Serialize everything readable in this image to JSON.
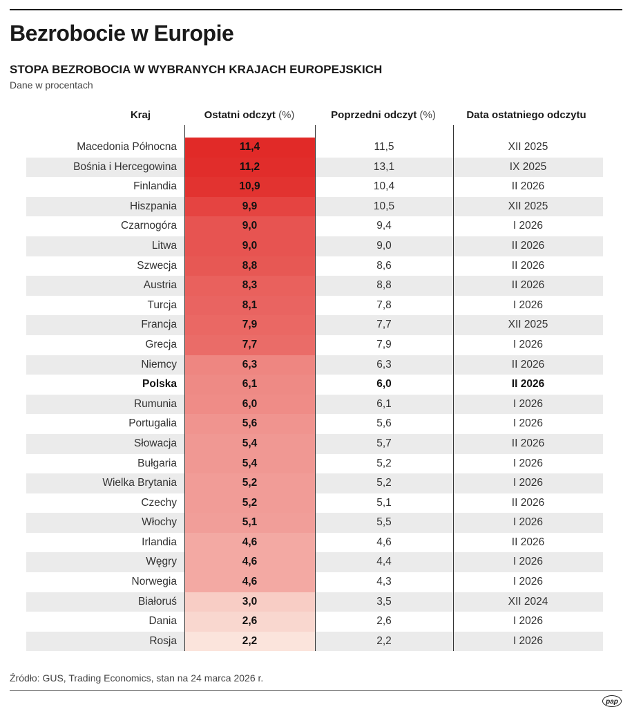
{
  "header": {
    "title": "Bezrobocie w Europie",
    "subtitle": "STOPA BEZROBOCIA W WYBRANYCH KRAJACH EUROPEJSKICH",
    "unit": "Dane w procentach"
  },
  "columns": {
    "country": "Kraj",
    "latest": "Ostatni odczyt",
    "latest_unit": "(%)",
    "previous": "Poprzedni odczyt",
    "previous_unit": "(%)",
    "date": "Data ostatniego odczytu"
  },
  "footer": {
    "source": "Źródło: GUS, Trading Economics, stan na 24 marca 2026 r.",
    "logo": "pap"
  },
  "colors": {
    "bar_max": "#e12a28",
    "bar_min": "#fbe4dc",
    "row_shade": "#ebebeb"
  },
  "chart_data": {
    "type": "table",
    "highlight": "Polska",
    "rows": [
      {
        "country": "Macedonia Północna",
        "latest": "11,4",
        "latest_value": 11.4,
        "previous": "11,5",
        "date": "XII 2025"
      },
      {
        "country": "Bośnia i Hercegowina",
        "latest": "11,2",
        "latest_value": 11.2,
        "previous": "13,1",
        "date": "IX 2025"
      },
      {
        "country": "Finlandia",
        "latest": "10,9",
        "latest_value": 10.9,
        "previous": "10,4",
        "date": "II 2026"
      },
      {
        "country": "Hiszpania",
        "latest": "9,9",
        "latest_value": 9.9,
        "previous": "10,5",
        "date": "XII 2025"
      },
      {
        "country": "Czarnogóra",
        "latest": "9,0",
        "latest_value": 9.0,
        "previous": "9,4",
        "date": "I 2026"
      },
      {
        "country": "Litwa",
        "latest": "9,0",
        "latest_value": 9.0,
        "previous": "9,0",
        "date": "II 2026"
      },
      {
        "country": "Szwecja",
        "latest": "8,8",
        "latest_value": 8.8,
        "previous": "8,6",
        "date": "II 2026"
      },
      {
        "country": "Austria",
        "latest": "8,3",
        "latest_value": 8.3,
        "previous": "8,8",
        "date": "II 2026"
      },
      {
        "country": "Turcja",
        "latest": "8,1",
        "latest_value": 8.1,
        "previous": "7,8",
        "date": "I 2026"
      },
      {
        "country": "Francja",
        "latest": "7,9",
        "latest_value": 7.9,
        "previous": "7,7",
        "date": "XII 2025"
      },
      {
        "country": "Grecja",
        "latest": "7,7",
        "latest_value": 7.7,
        "previous": "7,9",
        "date": "I 2026"
      },
      {
        "country": "Niemcy",
        "latest": "6,3",
        "latest_value": 6.3,
        "previous": "6,3",
        "date": "II 2026"
      },
      {
        "country": "Polska",
        "latest": "6,1",
        "latest_value": 6.1,
        "previous": "6,0",
        "date": "II 2026"
      },
      {
        "country": "Rumunia",
        "latest": "6,0",
        "latest_value": 6.0,
        "previous": "6,1",
        "date": "I 2026"
      },
      {
        "country": "Portugalia",
        "latest": "5,6",
        "latest_value": 5.6,
        "previous": "5,6",
        "date": "I 2026"
      },
      {
        "country": "Słowacja",
        "latest": "5,4",
        "latest_value": 5.4,
        "previous": "5,7",
        "date": "II 2026"
      },
      {
        "country": "Bułgaria",
        "latest": "5,4",
        "latest_value": 5.4,
        "previous": "5,2",
        "date": "I 2026"
      },
      {
        "country": "Wielka Brytania",
        "latest": "5,2",
        "latest_value": 5.2,
        "previous": "5,2",
        "date": "I 2026"
      },
      {
        "country": "Czechy",
        "latest": "5,2",
        "latest_value": 5.2,
        "previous": "5,1",
        "date": "II 2026"
      },
      {
        "country": "Włochy",
        "latest": "5,1",
        "latest_value": 5.1,
        "previous": "5,5",
        "date": "I 2026"
      },
      {
        "country": "Irlandia",
        "latest": "4,6",
        "latest_value": 4.6,
        "previous": "4,6",
        "date": "II 2026"
      },
      {
        "country": "Węgry",
        "latest": "4,6",
        "latest_value": 4.6,
        "previous": "4,4",
        "date": "I 2026"
      },
      {
        "country": "Norwegia",
        "latest": "4,6",
        "latest_value": 4.6,
        "previous": "4,3",
        "date": "I 2026"
      },
      {
        "country": "Białoruś",
        "latest": "3,0",
        "latest_value": 3.0,
        "previous": "3,5",
        "date": "XII 2024"
      },
      {
        "country": "Dania",
        "latest": "2,6",
        "latest_value": 2.6,
        "previous": "2,6",
        "date": "I 2026"
      },
      {
        "country": "Rosja",
        "latest": "2,2",
        "latest_value": 2.2,
        "previous": "2,2",
        "date": "I 2026"
      }
    ]
  }
}
